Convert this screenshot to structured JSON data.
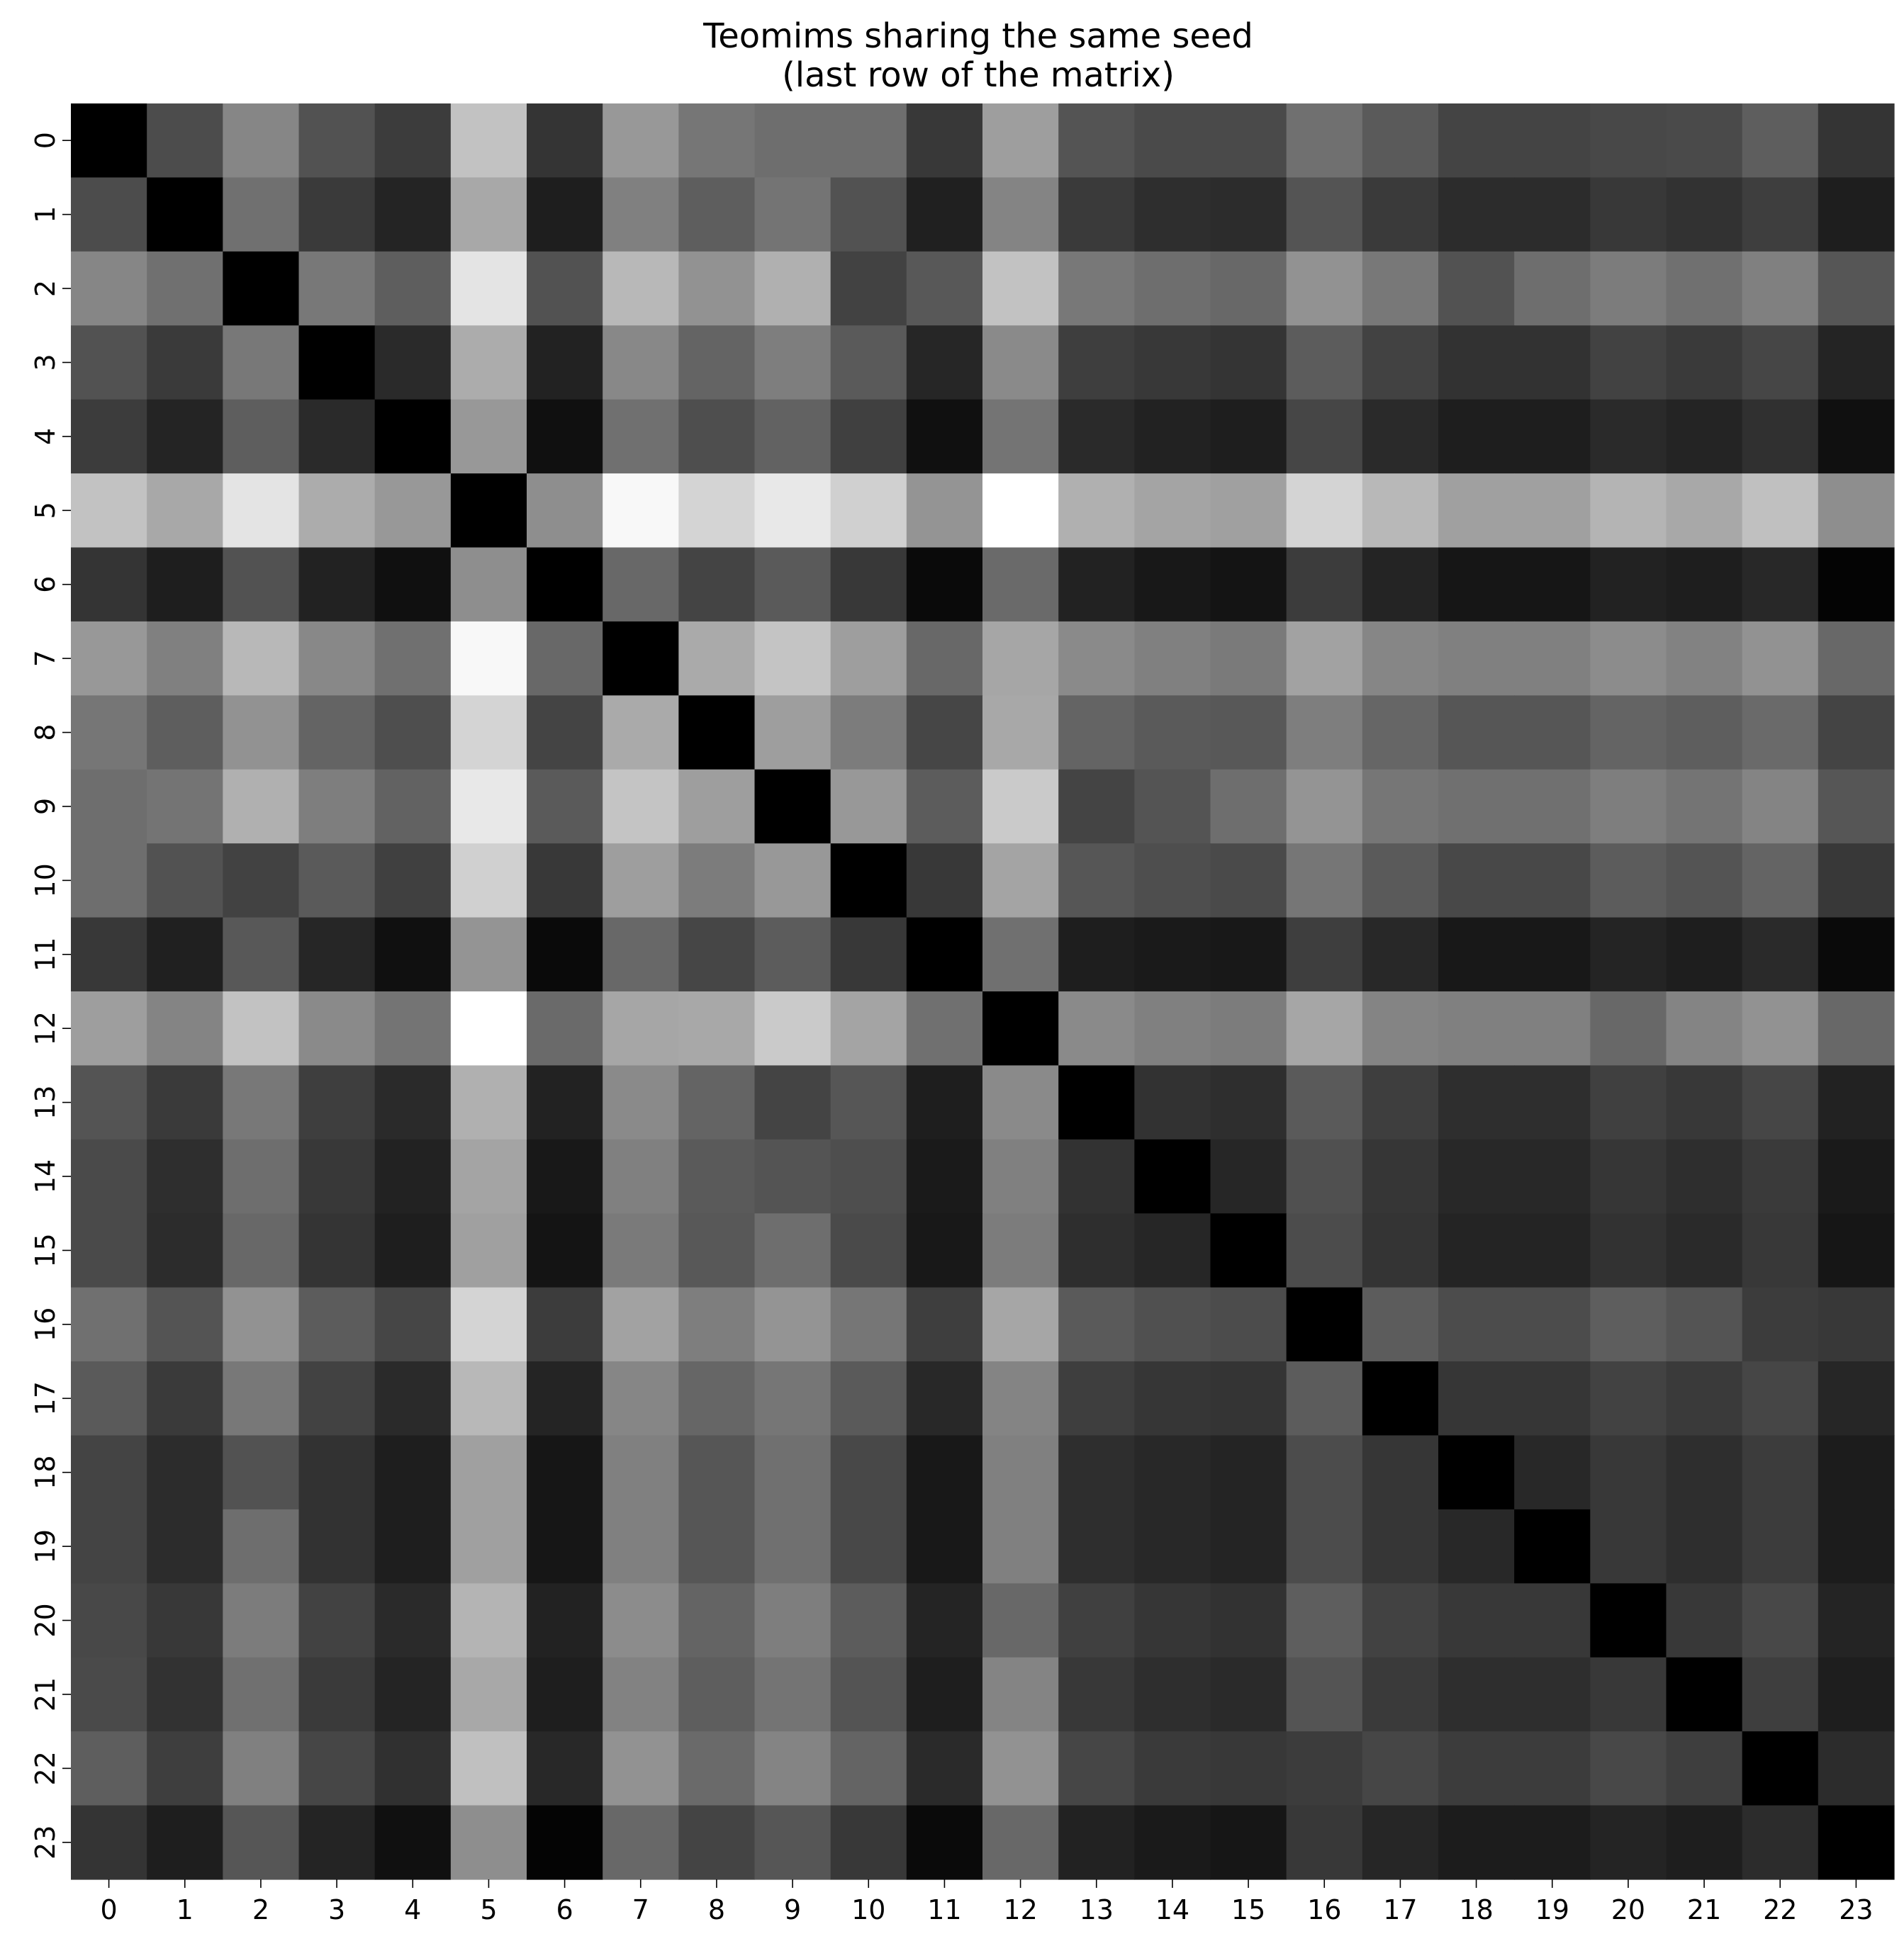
{
  "chart_data": {
    "type": "heatmap",
    "title_lines": [
      "Teomims sharing the same seed",
      "(last row of the matrix)"
    ],
    "xlabel": "",
    "ylabel": "",
    "x_tick_labels": [
      "0",
      "1",
      "2",
      "3",
      "4",
      "5",
      "6",
      "7",
      "8",
      "9",
      "10",
      "11",
      "12",
      "13",
      "14",
      "15",
      "16",
      "17",
      "18",
      "19",
      "20",
      "21",
      "22",
      "23"
    ],
    "y_tick_labels": [
      "0",
      "1",
      "2",
      "3",
      "4",
      "5",
      "6",
      "7",
      "8",
      "9",
      "10",
      "11",
      "12",
      "13",
      "14",
      "15",
      "16",
      "17",
      "18",
      "19",
      "20",
      "21",
      "22",
      "23"
    ],
    "colormap": "grayscale (black = 0, white = max)",
    "colorbar": false,
    "grid": false,
    "matrix_gray_levels_0_255": [
      [
        0,
        76,
        134,
        82,
        60,
        194,
        52,
        152,
        118,
        110,
        110,
        56,
        158,
        84,
        74,
        74,
        112,
        90,
        68,
        68,
        72,
        74,
        94,
        52
      ],
      [
        76,
        0,
        112,
        58,
        36,
        168,
        30,
        128,
        94,
        116,
        82,
        32,
        132,
        58,
        46,
        44,
        84,
        58,
        44,
        44,
        56,
        50,
        62,
        30
      ],
      [
        134,
        112,
        0,
        120,
        94,
        228,
        82,
        184,
        146,
        176,
        66,
        88,
        194,
        120,
        110,
        104,
        146,
        120,
        82,
        110,
        124,
        112,
        128,
        86
      ],
      [
        82,
        58,
        120,
        0,
        42,
        172,
        34,
        136,
        100,
        126,
        90,
        38,
        138,
        62,
        56,
        52,
        92,
        66,
        50,
        50,
        66,
        58,
        70,
        36
      ],
      [
        60,
        36,
        94,
        42,
        0,
        152,
        16,
        112,
        78,
        98,
        64,
        16,
        116,
        42,
        34,
        30,
        70,
        42,
        30,
        30,
        42,
        36,
        48,
        16
      ],
      [
        194,
        168,
        228,
        172,
        152,
        0,
        142,
        248,
        212,
        232,
        208,
        148,
        255,
        176,
        164,
        160,
        212,
        184,
        160,
        160,
        180,
        168,
        192,
        142
      ],
      [
        52,
        30,
        82,
        34,
        16,
        142,
        0,
        104,
        68,
        90,
        56,
        10,
        106,
        34,
        24,
        20,
        60,
        36,
        22,
        22,
        34,
        30,
        40,
        4
      ],
      [
        152,
        128,
        184,
        136,
        112,
        248,
        104,
        0,
        170,
        196,
        158,
        104,
        166,
        138,
        128,
        122,
        162,
        134,
        128,
        128,
        140,
        130,
        146,
        104
      ],
      [
        118,
        94,
        146,
        100,
        78,
        212,
        68,
        170,
        0,
        158,
        124,
        70,
        168,
        100,
        90,
        88,
        126,
        102,
        86,
        86,
        100,
        94,
        106,
        68
      ],
      [
        110,
        116,
        176,
        126,
        98,
        232,
        90,
        196,
        158,
        0,
        152,
        92,
        202,
        68,
        84,
        110,
        148,
        118,
        112,
        112,
        126,
        116,
        132,
        86
      ],
      [
        110,
        82,
        66,
        90,
        64,
        208,
        56,
        158,
        124,
        152,
        0,
        56,
        164,
        86,
        78,
        74,
        118,
        90,
        72,
        72,
        92,
        84,
        100,
        56
      ],
      [
        56,
        32,
        88,
        38,
        16,
        148,
        10,
        104,
        70,
        92,
        56,
        0,
        112,
        30,
        26,
        24,
        62,
        40,
        24,
        24,
        36,
        30,
        42,
        10
      ],
      [
        158,
        132,
        194,
        138,
        116,
        255,
        106,
        166,
        168,
        202,
        164,
        112,
        0,
        138,
        128,
        124,
        166,
        132,
        128,
        128,
        104,
        132,
        146,
        104
      ],
      [
        84,
        58,
        120,
        62,
        42,
        176,
        34,
        138,
        100,
        68,
        86,
        30,
        138,
        0,
        50,
        46,
        90,
        62,
        46,
        46,
        64,
        56,
        70,
        34
      ],
      [
        74,
        46,
        110,
        56,
        34,
        164,
        24,
        128,
        90,
        84,
        78,
        26,
        128,
        50,
        0,
        38,
        80,
        54,
        40,
        40,
        54,
        46,
        58,
        26
      ],
      [
        74,
        44,
        104,
        52,
        30,
        160,
        20,
        122,
        88,
        110,
        74,
        24,
        124,
        46,
        38,
        0,
        76,
        52,
        36,
        36,
        50,
        42,
        56,
        22
      ],
      [
        112,
        84,
        146,
        92,
        70,
        212,
        60,
        162,
        126,
        148,
        118,
        62,
        166,
        90,
        80,
        76,
        0,
        92,
        76,
        76,
        94,
        84,
        60,
        56
      ],
      [
        90,
        58,
        120,
        66,
        42,
        184,
        36,
        134,
        102,
        118,
        90,
        40,
        132,
        62,
        54,
        52,
        92,
        0,
        54,
        54,
        66,
        58,
        70,
        38
      ],
      [
        68,
        44,
        82,
        50,
        30,
        160,
        22,
        128,
        86,
        112,
        72,
        24,
        128,
        46,
        40,
        36,
        76,
        54,
        0,
        40,
        56,
        46,
        60,
        28
      ],
      [
        68,
        44,
        110,
        50,
        30,
        160,
        22,
        128,
        86,
        112,
        72,
        24,
        128,
        46,
        40,
        36,
        76,
        54,
        40,
        0,
        56,
        46,
        60,
        28
      ],
      [
        72,
        56,
        124,
        66,
        42,
        180,
        34,
        140,
        100,
        126,
        92,
        36,
        104,
        64,
        54,
        50,
        94,
        66,
        56,
        56,
        0,
        56,
        72,
        36
      ],
      [
        74,
        50,
        112,
        58,
        36,
        168,
        30,
        130,
        94,
        116,
        84,
        30,
        132,
        56,
        46,
        42,
        84,
        58,
        46,
        46,
        56,
        0,
        62,
        30
      ],
      [
        94,
        62,
        128,
        70,
        48,
        192,
        40,
        146,
        106,
        132,
        100,
        42,
        146,
        70,
        58,
        56,
        60,
        70,
        60,
        60,
        72,
        62,
        0,
        44
      ],
      [
        52,
        30,
        86,
        36,
        16,
        142,
        4,
        104,
        68,
        86,
        56,
        10,
        104,
        34,
        26,
        22,
        56,
        38,
        28,
        28,
        36,
        30,
        44,
        0
      ]
    ]
  }
}
